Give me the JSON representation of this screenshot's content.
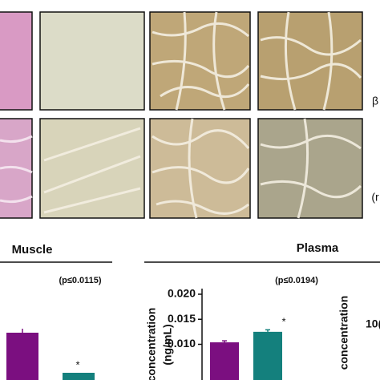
{
  "headings": {
    "muscle": "Muscle",
    "plasma": "Plasma"
  },
  "muscle_note": "(p≤0.0115)",
  "muscle_star": "*",
  "edge_labels": [
    "β",
    "(r"
  ],
  "edge_chart": {
    "ylabel": "concentration",
    "tick": "10("
  },
  "chart_data": {
    "type": "bar",
    "ylabel": [
      "concentration",
      "(ng/mL)"
    ],
    "annotation": "(p≤0.0194)",
    "star": "*",
    "categories": [
      null,
      null
    ],
    "values": [
      0.0104,
      0.0125
    ],
    "errors": [
      0.0003,
      0.0004
    ],
    "colors": [
      "#7b0f80",
      "#14807d"
    ],
    "ylim": [
      0,
      0.02
    ],
    "yticks": [
      {
        "value": 0.01,
        "label": "0.010"
      },
      {
        "value": 0.015,
        "label": "0.015"
      },
      {
        "value": 0.02,
        "label": "0.020"
      }
    ]
  }
}
